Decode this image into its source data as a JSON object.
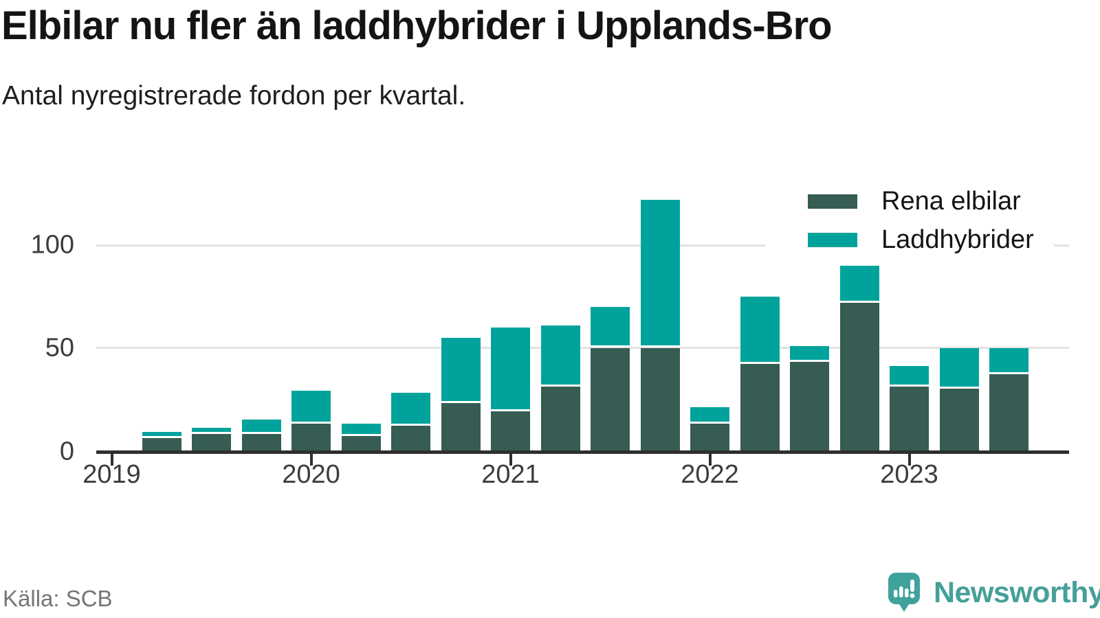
{
  "header": {
    "title": "Elbilar nu fler än laddhybrider i Upplands-Bro",
    "subtitle": "Antal nyregistrerade fordon per kvartal."
  },
  "legend": [
    {
      "label": "Rena elbilar",
      "color": "#365c53"
    },
    {
      "label": "Laddhybrider",
      "color": "#00a39b"
    }
  ],
  "footer": {
    "source": "Källa: SCB",
    "brand": "Newsworthy",
    "brand_icon": "newsworthy-pin-chart-icon",
    "brand_color": "#45a099"
  },
  "colors": {
    "elbilar": "#365c53",
    "laddhybrider": "#00a39b",
    "axis": "#2f2f2f",
    "grid": "#e2e2e2",
    "tick_text": "#3c3c3c"
  },
  "chart_data": {
    "type": "bar",
    "stacked": true,
    "title": "Elbilar nu fler än laddhybrider i Upplands-Bro",
    "subtitle": "Antal nyregistrerade fordon per kvartal.",
    "categories": [
      "2019 Q2",
      "2019 Q3",
      "2019 Q4",
      "2020 Q1",
      "2020 Q2",
      "2020 Q3",
      "2020 Q4",
      "2021 Q1",
      "2021 Q2",
      "2021 Q3",
      "2021 Q4",
      "2022 Q1",
      "2022 Q2",
      "2022 Q3",
      "2022 Q4",
      "2023 Q1",
      "2023 Q2",
      "2023 Q3"
    ],
    "series": [
      {
        "name": "Rena elbilar",
        "color": "#365c53",
        "values": [
          6,
          8,
          8,
          13,
          7,
          12,
          23,
          19,
          31,
          50,
          50,
          13,
          42,
          43,
          72,
          31,
          30,
          37
        ]
      },
      {
        "name": "Laddhybrider",
        "color": "#00a39b",
        "values": [
          3,
          3,
          7,
          16,
          6,
          16,
          32,
          41,
          30,
          20,
          72,
          8,
          33,
          8,
          18,
          10,
          20,
          13
        ]
      }
    ],
    "x_tick_labels": [
      "2019",
      "2020",
      "2021",
      "2022",
      "2023"
    ],
    "y_ticks": [
      0,
      50,
      100
    ],
    "ylim": [
      0,
      125
    ],
    "grid": "horizontal",
    "legend_position": "top-right",
    "xlabel": "",
    "ylabel": ""
  }
}
